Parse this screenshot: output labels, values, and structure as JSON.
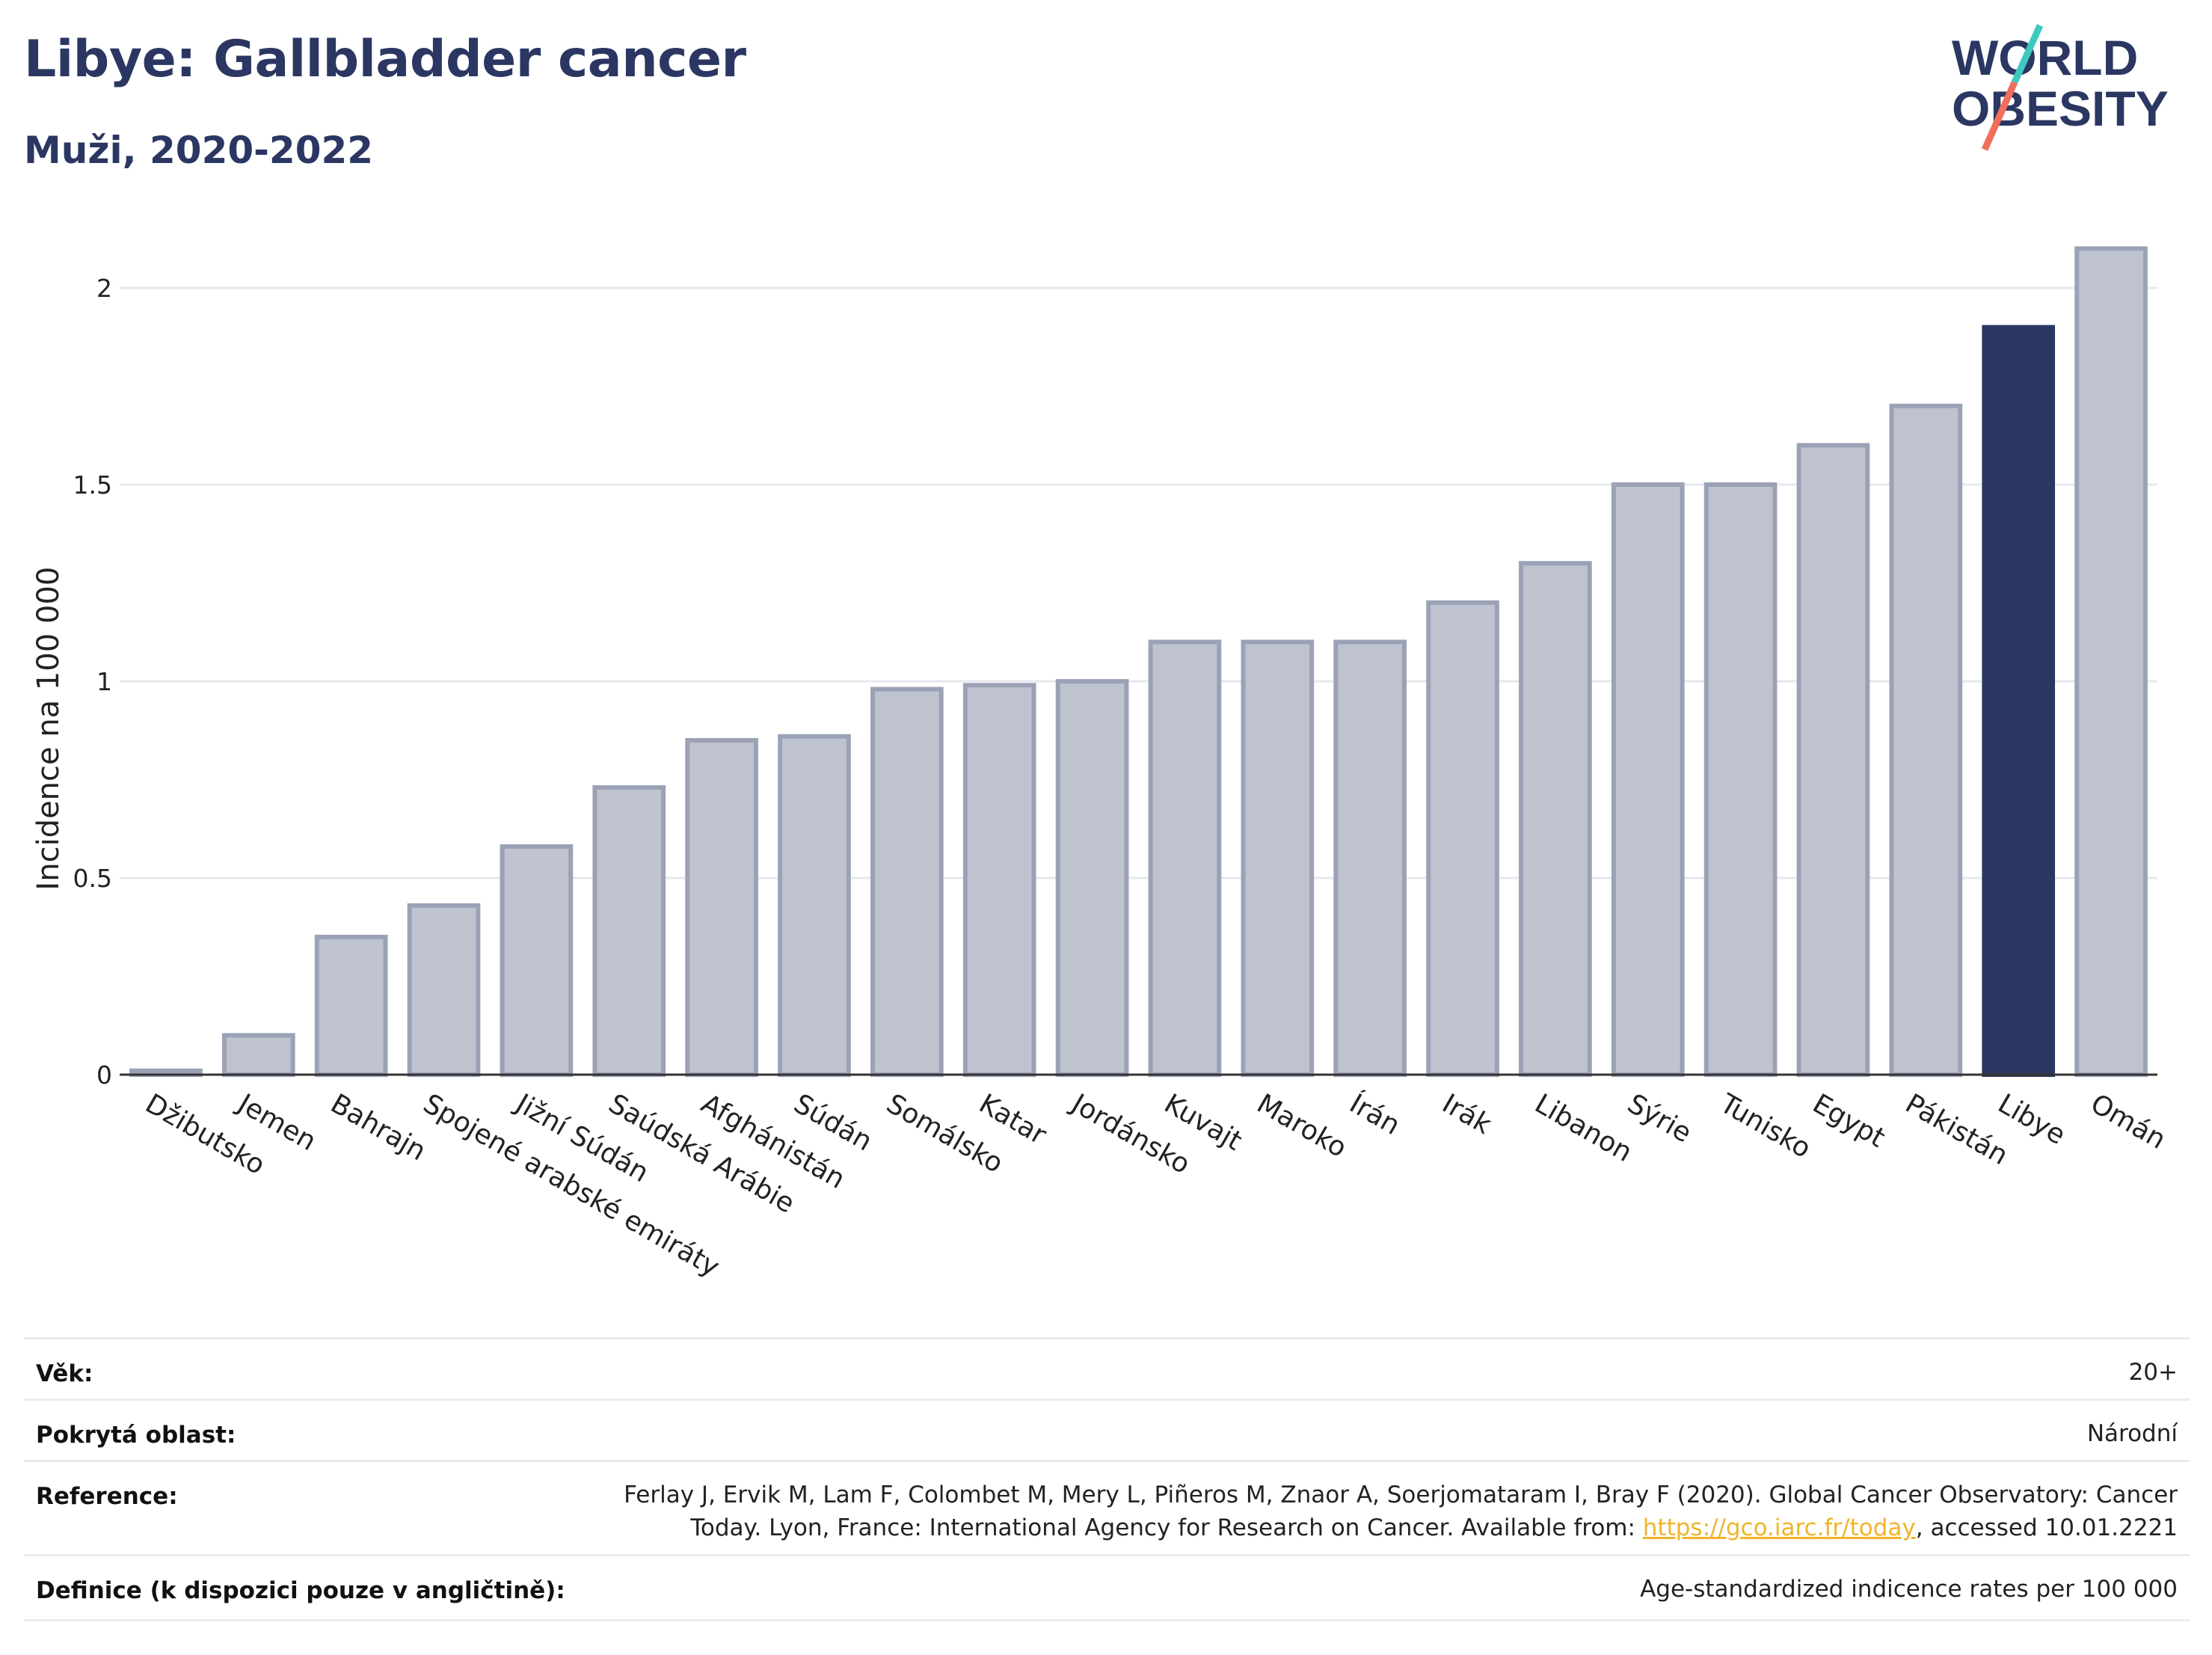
{
  "header": {
    "title": "Libye: Gallbladder cancer",
    "subtitle": "Muži, 2020-2022",
    "logo_line1": "WORLD",
    "logo_line2": "OBESITY"
  },
  "colors": {
    "title": "#2b3762",
    "bar_default_fill": "#bfc3cf",
    "bar_default_stroke": "#9ba2b6",
    "bar_highlight": "#2b3762",
    "grid": "#e6e8ee",
    "link": "#f0b429",
    "logo_teal": "#3ec9c0",
    "logo_coral": "#ef6f5a"
  },
  "chart_data": {
    "type": "bar",
    "ylabel": "Incidence na 100 000",
    "ylim": [
      0,
      2.2
    ],
    "yticks": [
      0,
      0.5,
      1,
      1.5,
      2
    ],
    "ytick_labels": [
      "0",
      "0.5",
      "1",
      "1.5",
      "2"
    ],
    "grid": true,
    "highlight": "Libye",
    "categories": [
      "Džibutsko",
      "Jemen",
      "Bahrajn",
      "Spojené arabské emiráty",
      "Jižní Súdán",
      "Saúdská Arábie",
      "Afghánistán",
      "Súdán",
      "Somálsko",
      "Katar",
      "Jordánsko",
      "Kuvajt",
      "Maroko",
      "Írán",
      "Irák",
      "Libanon",
      "Sýrie",
      "Tunisko",
      "Egypt",
      "Pákistán",
      "Libye",
      "Omán"
    ],
    "values": [
      0.01,
      0.1,
      0.35,
      0.43,
      0.58,
      0.73,
      0.85,
      0.86,
      0.98,
      0.99,
      1.0,
      1.1,
      1.1,
      1.1,
      1.2,
      1.3,
      1.5,
      1.5,
      1.6,
      1.7,
      1.9,
      2.1
    ]
  },
  "info": {
    "age_label": "Věk:",
    "age_value": "20+",
    "coverage_label": "Pokrytá oblast:",
    "coverage_value": "Národní",
    "reference_label": "Reference:",
    "reference_line1": "Ferlay J, Ervik M, Lam F, Colombet M, Mery L, Piñeros M, Znaor A, Soerjomataram I, Bray F (2020). Global Cancer Observatory: Cancer",
    "reference_line2_pre": "Today. Lyon, France: International Agency for Research on Cancer. Available from: ",
    "reference_link": "https://gco.iarc.fr/today",
    "reference_line2_post": ", accessed 10.01.2221",
    "definition_label": "Definice (k dispozici pouze v angličtině):",
    "definition_value": "Age-standardized indicence rates per 100 000"
  }
}
